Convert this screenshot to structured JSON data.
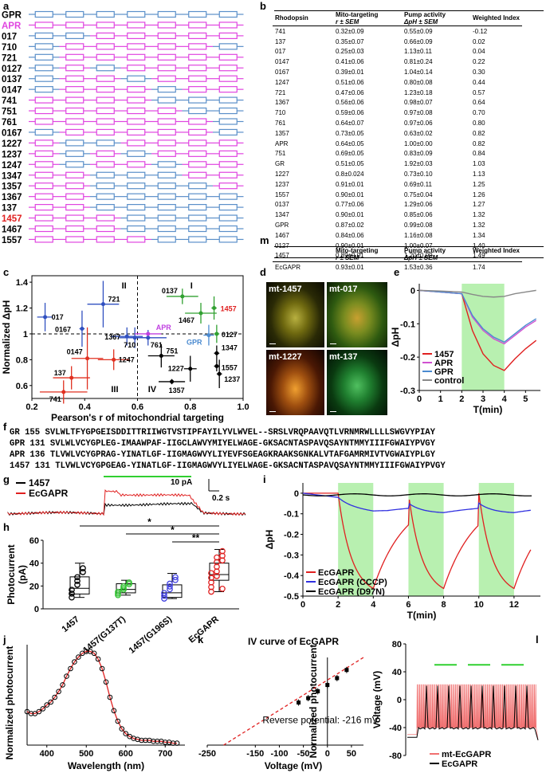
{
  "panel_labels": {
    "a": "a",
    "b": "b",
    "c": "c",
    "d": "d",
    "e": "e",
    "f": "f",
    "g": "g",
    "h": "h",
    "i": "i",
    "j": "j",
    "k": "k",
    "l": "l",
    "m": "m"
  },
  "panel_a": {
    "rows": [
      {
        "label": "GPR",
        "pattern": "BBBBBBB"
      },
      {
        "label": "APR",
        "pattern": "MMMMMMM"
      },
      {
        "label": "017",
        "pattern": "BBMMMMM"
      },
      {
        "label": "710",
        "pattern": "BMMMMMB"
      },
      {
        "label": "721",
        "pattern": "BMMMMMM"
      },
      {
        "label": "0127",
        "pattern": "BMBMMMM"
      },
      {
        "label": "0137",
        "pattern": "BMMBMMM"
      },
      {
        "label": "0147",
        "pattern": "BMMMBMM"
      },
      {
        "label": "741",
        "pattern": "MMMMBBB"
      },
      {
        "label": "751",
        "pattern": "MMMMMBB"
      },
      {
        "label": "761",
        "pattern": "MMMMMMB"
      },
      {
        "label": "0167",
        "pattern": "BMMMMMB"
      },
      {
        "label": "1227",
        "pattern": "MBBMMMM"
      },
      {
        "label": "1237",
        "pattern": "MBMBMMM"
      },
      {
        "label": "1247",
        "pattern": "MBMMBMM"
      },
      {
        "label": "1347",
        "pattern": "MMBBBMM"
      },
      {
        "label": "1357",
        "pattern": "MMBBBBM"
      },
      {
        "label": "1367",
        "pattern": "MMBBBBB"
      },
      {
        "label": "137",
        "pattern": "MMBBBBB"
      },
      {
        "label": "1457",
        "pattern": "MMMBBBB"
      },
      {
        "label": "1467",
        "pattern": "MMMBBBB"
      },
      {
        "label": "1557",
        "pattern": "MMMMBBB"
      }
    ],
    "colors": {
      "B": "#5b8fc9",
      "M": "#e045e0",
      "highlight": "#e02020"
    }
  },
  "panel_b": {
    "headers": [
      "Rhodopsin",
      "Mito-targeting",
      "r ± SEM",
      "Pump activity",
      "ΔpH ± SEM",
      "Weighted Index"
    ],
    "rows": [
      [
        "741",
        "0.32±0.09",
        "0.55±0.09",
        "-0.12"
      ],
      [
        "137",
        "0.35±0.07",
        "0.66±0.09",
        "0.02"
      ],
      [
        "017",
        "0.25±0.03",
        "1.13±0.11",
        "0.04"
      ],
      [
        "0147",
        "0.41±0.06",
        "0.81±0.24",
        "0.22"
      ],
      [
        "0167",
        "0.39±0.01",
        "1.04±0.14",
        "0.30"
      ],
      [
        "1247",
        "0.51±0.06",
        "0.80±0.08",
        "0.44"
      ],
      [
        "721",
        "0.47±0.06",
        "1.23±0.18",
        "0.57"
      ],
      [
        "1367",
        "0.56±0.06",
        "0.98±0.07",
        "0.64"
      ],
      [
        "710",
        "0.59±0.06",
        "0.97±0.08",
        "0.70"
      ],
      [
        "761",
        "0.64±0.07",
        "0.97±0.06",
        "0.80"
      ],
      [
        "1357",
        "0.73±0.05",
        "0.63±0.02",
        "0.82"
      ],
      [
        "APR",
        "0.64±0.05",
        "1.00±0.00",
        "0.82"
      ],
      [
        "751",
        "0.69±0.05",
        "0.83±0.09",
        "0.84"
      ],
      [
        "GR",
        "0.51±0.05",
        "1.92±0.03",
        "1.03"
      ],
      [
        "1227",
        "0.8±0.024",
        "0.73±0.10",
        "1.13"
      ],
      [
        "1237",
        "0.91±0.01",
        "0.69±0.11",
        "1.25"
      ],
      [
        "1557",
        "0.90±0.01",
        "0.75±0.04",
        "1.26"
      ],
      [
        "0137",
        "0.77±0.06",
        "1.29±0.06",
        "1.27"
      ],
      [
        "1347",
        "0.90±0.01",
        "0.85±0.06",
        "1.32"
      ],
      [
        "GPR",
        "0.87±0.02",
        "0.99±0.08",
        "1.32"
      ],
      [
        "1467",
        "0.84±0.06",
        "1.16±0.08",
        "1.34"
      ],
      [
        "0127",
        "0.90±0.01",
        "1.00±0.07",
        "1.40"
      ],
      [
        "1457",
        "0.89±0.01",
        "1.20±0.09",
        "1.49"
      ]
    ]
  },
  "panel_m": {
    "headers": [
      "Mito-targeting",
      "r ± SEM",
      "Pump activity",
      "ΔpH ± SEM",
      "Weighted Index"
    ],
    "row": [
      "EcGAPR",
      "0.93±0.01",
      "1.53±0.36",
      "1.74"
    ]
  },
  "chart_data": [
    {
      "panel": "c",
      "type": "scatter",
      "xlabel": "Pearson's r of mitochondrial targeting",
      "ylabel": "Normalized ΔpH",
      "xlim": [
        0.2,
        1.0
      ],
      "ylim": [
        0.5,
        1.45
      ],
      "xticks": [
        "0.2",
        "0.4",
        "0.6",
        "0.8",
        "1.0"
      ],
      "yticks": [
        "0.6",
        "0.8",
        "1",
        "1.2",
        "1.4"
      ],
      "quadrants": [
        "I",
        "II",
        "III",
        "IV"
      ],
      "points": [
        {
          "label": "017",
          "x": 0.25,
          "y": 1.13,
          "ex": 0.03,
          "ey": 0.11,
          "color": "#3050c0"
        },
        {
          "label": "721",
          "x": 0.47,
          "y": 1.23,
          "ex": 0.06,
          "ey": 0.18,
          "color": "#3050c0"
        },
        {
          "label": "0167",
          "x": 0.39,
          "y": 1.04,
          "ex": 0.01,
          "ey": 0.14,
          "color": "#3050c0"
        },
        {
          "label": "1367",
          "x": 0.56,
          "y": 0.98,
          "ex": 0.06,
          "ey": 0.07,
          "color": "#3050c0"
        },
        {
          "label": "710",
          "x": 0.59,
          "y": 0.97,
          "ex": 0.06,
          "ey": 0.08,
          "color": "#3050c0"
        },
        {
          "label": "761",
          "x": 0.64,
          "y": 0.97,
          "ex": 0.07,
          "ey": 0.06,
          "color": "#3050c0"
        },
        {
          "label": "APR",
          "x": 0.64,
          "y": 1.0,
          "ex": 0.05,
          "ey": 0.0,
          "color": "#c040e0"
        },
        {
          "label": "GPR",
          "x": 0.87,
          "y": 0.99,
          "ex": 0.02,
          "ey": 0.08,
          "color": "#4a8ad0"
        },
        {
          "label": "0147",
          "x": 0.41,
          "y": 0.81,
          "ex": 0.06,
          "ey": 0.24,
          "color": "#e03020"
        },
        {
          "label": "1247",
          "x": 0.51,
          "y": 0.8,
          "ex": 0.06,
          "ey": 0.08,
          "color": "#e03020"
        },
        {
          "label": "137",
          "x": 0.35,
          "y": 0.66,
          "ex": 0.07,
          "ey": 0.09,
          "color": "#e03020"
        },
        {
          "label": "741",
          "x": 0.32,
          "y": 0.55,
          "ex": 0.09,
          "ey": 0.09,
          "color": "#e03020"
        },
        {
          "label": "0137",
          "x": 0.77,
          "y": 1.29,
          "ex": 0.06,
          "ey": 0.06,
          "color": "#30a030"
        },
        {
          "label": "1467",
          "x": 0.84,
          "y": 1.16,
          "ex": 0.06,
          "ey": 0.08,
          "color": "#30a030"
        },
        {
          "label": "1457",
          "x": 0.89,
          "y": 1.2,
          "ex": 0.01,
          "ey": 0.09,
          "color": "#30a030"
        },
        {
          "label": "0127",
          "x": 0.9,
          "y": 1.0,
          "ex": 0.01,
          "ey": 0.07,
          "color": "#30a030"
        },
        {
          "label": "751",
          "x": 0.69,
          "y": 0.83,
          "ex": 0.05,
          "ey": 0.09,
          "color": "#000000"
        },
        {
          "label": "1227",
          "x": 0.8,
          "y": 0.73,
          "ex": 0.024,
          "ey": 0.1,
          "color": "#000000"
        },
        {
          "label": "1347",
          "x": 0.9,
          "y": 0.85,
          "ex": 0.01,
          "ey": 0.06,
          "color": "#000000"
        },
        {
          "label": "1557",
          "x": 0.9,
          "y": 0.75,
          "ex": 0.01,
          "ey": 0.04,
          "color": "#000000"
        },
        {
          "label": "1237",
          "x": 0.91,
          "y": 0.69,
          "ex": 0.01,
          "ey": 0.11,
          "color": "#000000"
        },
        {
          "label": "1357",
          "x": 0.73,
          "y": 0.63,
          "ex": 0.05,
          "ey": 0.02,
          "color": "#000000"
        }
      ]
    },
    {
      "panel": "e",
      "type": "line",
      "xlabel": "T(min)",
      "ylabel": "ΔpH",
      "xlim": [
        0,
        5.7
      ],
      "ylim": [
        -0.3,
        0.02
      ],
      "xticks": [
        "0",
        "1",
        "2",
        "3",
        "4",
        "5"
      ],
      "yticks": [
        "0",
        "-0.1",
        "-0.2",
        "-0.3"
      ],
      "light_on": [
        2,
        4
      ],
      "series": [
        {
          "name": "1457",
          "color": "#e02020",
          "x": [
            0,
            1,
            2,
            2.5,
            3,
            3.5,
            4,
            4.5,
            5,
            5.5
          ],
          "y": [
            0,
            -0.005,
            -0.01,
            -0.12,
            -0.19,
            -0.225,
            -0.24,
            -0.205,
            -0.175,
            -0.15
          ]
        },
        {
          "name": "APR",
          "color": "#d050d0",
          "x": [
            0,
            1,
            2,
            2.5,
            3,
            3.5,
            4,
            4.5,
            5,
            5.5
          ],
          "y": [
            0,
            -0.005,
            -0.01,
            -0.08,
            -0.12,
            -0.145,
            -0.16,
            -0.135,
            -0.11,
            -0.09
          ]
        },
        {
          "name": "GPR",
          "color": "#4a8ad0",
          "x": [
            0,
            1,
            2,
            2.5,
            3,
            3.5,
            4,
            4.5,
            5,
            5.5
          ],
          "y": [
            0,
            -0.005,
            -0.01,
            -0.075,
            -0.115,
            -0.14,
            -0.155,
            -0.13,
            -0.105,
            -0.085
          ]
        },
        {
          "name": "control",
          "color": "#888888",
          "x": [
            0,
            1,
            2,
            2.5,
            3,
            3.5,
            4,
            4.5,
            5,
            5.5
          ],
          "y": [
            0,
            -0.002,
            -0.005,
            -0.012,
            -0.018,
            -0.02,
            -0.018,
            -0.01,
            -0.005,
            0
          ]
        }
      ]
    },
    {
      "panel": "g",
      "type": "line",
      "series": [
        {
          "name": "1457",
          "color": "#000000"
        },
        {
          "name": "EcGAPR",
          "color": "#e02020"
        }
      ],
      "scalebar": [
        "10 pA",
        "0.2 s"
      ]
    },
    {
      "panel": "h",
      "type": "bar",
      "ylabel": "Photocurrent (pA)",
      "ylim": [
        0,
        60
      ],
      "yticks": [
        "0",
        "20",
        "40",
        "60"
      ],
      "categories": [
        "1457",
        "1457(G137T)",
        "1457(G196S)",
        "EcGAPR"
      ],
      "colors": [
        "#000000",
        "#30c030",
        "#4040e0",
        "#e02020"
      ],
      "box": [
        {
          "min": 10,
          "q1": 13,
          "median": 18,
          "q3": 28,
          "max": 40
        },
        {
          "min": 12,
          "q1": 14,
          "median": 17,
          "q3": 22,
          "max": 25
        },
        {
          "min": 9,
          "q1": 10,
          "median": 14,
          "q3": 21,
          "max": 31
        },
        {
          "min": 15,
          "q1": 25,
          "median": 30,
          "q3": 40,
          "max": 52
        }
      ],
      "significance": [
        "*",
        "*",
        "**"
      ]
    },
    {
      "panel": "i",
      "type": "line",
      "xlabel": "T(min)",
      "ylabel": "ΔpH",
      "xlim": [
        0,
        13.5
      ],
      "ylim": [
        -0.5,
        0.05
      ],
      "xticks": [
        "0",
        "2",
        "4",
        "6",
        "8",
        "10",
        "12"
      ],
      "yticks": [
        "0",
        "-0.1",
        "-0.2",
        "-0.3",
        "-0.4",
        "-0.5"
      ],
      "light_on": [
        [
          2,
          4
        ],
        [
          6,
          8
        ],
        [
          10,
          12
        ]
      ],
      "series": [
        {
          "name": "EcGAPR",
          "color": "#e02020"
        },
        {
          "name": "EcGAPR (CCCP)",
          "color": "#3030e0"
        },
        {
          "name": "EcGAPR (D97N)",
          "color": "#000000"
        }
      ]
    },
    {
      "panel": "j",
      "type": "line",
      "xlabel": "Wavelength (nm)",
      "ylabel": "Normalized photocurrent",
      "xlim": [
        350,
        750
      ],
      "ylim": [
        0,
        1.05
      ],
      "xticks": [
        "400",
        "500",
        "600",
        "700"
      ],
      "x": [
        350,
        360,
        370,
        380,
        390,
        400,
        410,
        420,
        430,
        440,
        450,
        460,
        470,
        480,
        490,
        500,
        510,
        520,
        530,
        540,
        550,
        560,
        570,
        580,
        590,
        600,
        610,
        620,
        630,
        640,
        650,
        660,
        670,
        680,
        690,
        700,
        710,
        720,
        730
      ],
      "y": [
        0.35,
        0.33,
        0.33,
        0.35,
        0.38,
        0.42,
        0.45,
        0.5,
        0.56,
        0.63,
        0.72,
        0.8,
        0.87,
        0.92,
        0.96,
        0.98,
        0.98,
        0.96,
        0.9,
        0.8,
        0.66,
        0.5,
        0.36,
        0.25,
        0.17,
        0.12,
        0.09,
        0.07,
        0.06,
        0.05,
        0.05,
        0.05,
        0.04,
        0.04,
        0.04,
        0.03,
        0.03,
        0.02,
        0.02
      ]
    },
    {
      "panel": "k",
      "type": "scatter",
      "title": "IV curve of EcGAPR",
      "xlabel": "Voltage (mV)",
      "ylabel": "Normalized photocurrent",
      "xlim": [
        -250,
        75
      ],
      "ylim": [
        0,
        1.4
      ],
      "xticks": [
        "-250",
        "-150",
        "-100",
        "-50",
        "0",
        "50"
      ],
      "annotation": "Reverse potential: -216 mV",
      "x": [
        -60,
        -40,
        -20,
        0,
        20,
        40
      ],
      "y": [
        0.68,
        0.75,
        0.86,
        0.96,
        1.07,
        1.2
      ]
    },
    {
      "panel": "l",
      "type": "line",
      "ylabel": "Voltage (mV)",
      "ylim": [
        -80,
        80
      ],
      "yticks": [
        "-80",
        "-40",
        "0",
        "40",
        "80"
      ],
      "series": [
        {
          "name": "mt-EcGAPR",
          "color": "#f07070"
        },
        {
          "name": "EcGAPR",
          "color": "#000000"
        }
      ]
    }
  ],
  "panel_d": {
    "labels": [
      "mt-1457",
      "mt-017",
      "mt-1227",
      "mt-137"
    ]
  },
  "panel_f": {
    "rows": [
      "GR 155 SVLWLTFYGPGEISDDITTRIIWGTVSTIPFAYILYVLWVEL--SRSLVRQPAAVQTLVRNMRWLLLLSWGVYPIAY",
      "GPR 131 SVLWLVCYGPLEG-IMAAWPAF-IIGCLAWVYMIYELWAGE-GKSACNTASPAVQSAYNTMMYIIIFGWAIYPVGY",
      "APR 136 TLVWLVCYGPRAG-YINATLGF-IIGMAGWVYLIYEVFSGEAGKRAAKSGNKALVTAFGAMRMIVTVGWAIYPLGY",
      "1457 131 TLVWLVCYGPGEAG-YINATLGF-IIGMAGWVYLIYELWAGE-GKSACNTASPAVQSAYNTMMYIIIFGWAIYPVGY"
    ]
  }
}
